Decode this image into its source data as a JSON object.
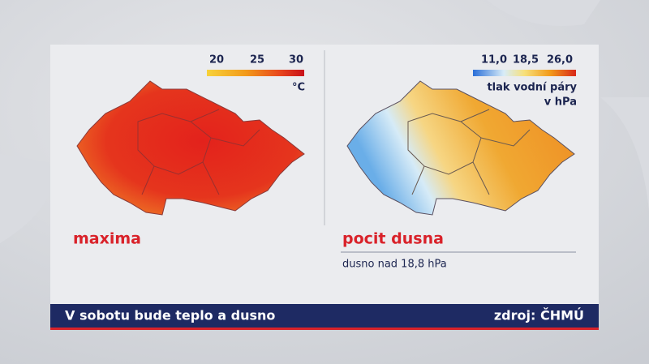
{
  "panels": [
    {
      "title": "maxima",
      "legend": {
        "ticks": [
          "20",
          "25",
          "30"
        ],
        "unit_lines": [
          "°C"
        ]
      }
    },
    {
      "title": "pocit dusna",
      "legend": {
        "ticks": [
          "11,0",
          "18,5",
          "26,0"
        ],
        "unit_lines": [
          "tlak vodní páry",
          "v hPa"
        ]
      },
      "note": "dusno nad 18,8 hPa"
    }
  ],
  "footer": {
    "headline": "V sobotu bude teplo a dusno",
    "source": "zdroj: ČHMÚ"
  }
}
